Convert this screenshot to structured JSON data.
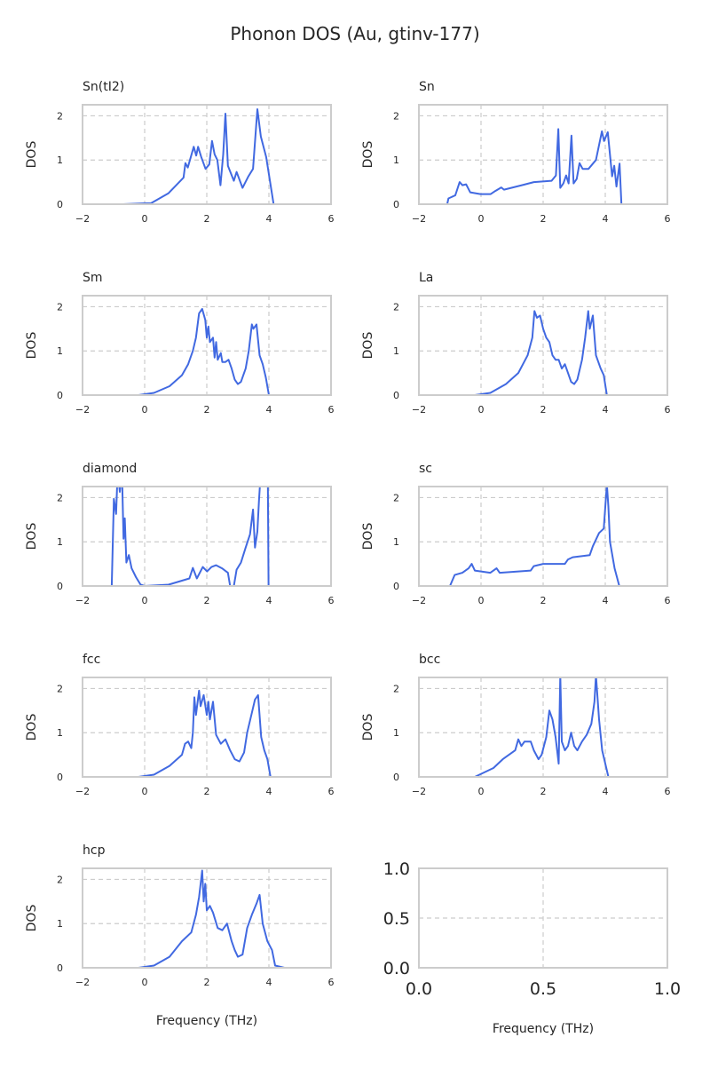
{
  "title": "Phonon DOS (Au, gtinv-177)",
  "line_color": "#4169e1",
  "chart_data": [
    {
      "type": "line",
      "title": "Sn(tI2)",
      "ylabel": "DOS",
      "xlabel": "",
      "xlim": [
        -2,
        6
      ],
      "ylim": [
        0,
        2.25
      ],
      "xticks": [
        "−2",
        "0",
        "2",
        "4",
        "6"
      ],
      "yticks": [
        "0",
        "1",
        "2"
      ],
      "grid": true,
      "x": [
        -0.7,
        0,
        0.2,
        0.77,
        1.25,
        1.31,
        1.39,
        1.58,
        1.66,
        1.72,
        1.82,
        1.96,
        2.08,
        2.17,
        2.25,
        2.34,
        2.44,
        2.53,
        2.6,
        2.68,
        2.87,
        2.96,
        3.15,
        3.34,
        3.49,
        3.63,
        3.74,
        3.91,
        4.15,
        4.63
      ],
      "y": [
        0,
        0.02,
        0.02,
        0.25,
        0.6,
        0.93,
        0.83,
        1.3,
        1.1,
        1.3,
        1.07,
        0.8,
        0.9,
        1.43,
        1.13,
        1.0,
        0.43,
        1.13,
        2.05,
        0.87,
        0.53,
        0.73,
        0.37,
        0.63,
        0.8,
        2.15,
        1.53,
        1.07,
        0,
        0
      ]
    },
    {
      "type": "line",
      "title": "Sn",
      "ylabel": "DOS",
      "xlabel": "",
      "xlim": [
        -2,
        6
      ],
      "ylim": [
        0,
        2.25
      ],
      "xticks": [
        "−2",
        "0",
        "2",
        "4",
        "6"
      ],
      "yticks": [
        "0",
        "1",
        "2"
      ],
      "grid": true,
      "x": [
        -1.64,
        -1.09,
        -1.05,
        -0.83,
        -0.69,
        -0.6,
        -0.48,
        -0.35,
        -0.02,
        0.31,
        0.46,
        0.65,
        0.74,
        1.31,
        1.7,
        2.27,
        2.41,
        2.49,
        2.55,
        2.65,
        2.74,
        2.82,
        2.91,
        2.98,
        3.08,
        3.17,
        3.27,
        3.46,
        3.7,
        3.89,
        3.96,
        4.08,
        4.22,
        4.29,
        4.36,
        4.46,
        4.52,
        5.07
      ],
      "y": [
        0,
        0,
        0.13,
        0.2,
        0.5,
        0.43,
        0.45,
        0.27,
        0.23,
        0.23,
        0.3,
        0.38,
        0.33,
        0.43,
        0.5,
        0.53,
        0.65,
        1.7,
        0.37,
        0.47,
        0.65,
        0.47,
        1.55,
        0.47,
        0.57,
        0.93,
        0.8,
        0.8,
        1.0,
        1.65,
        1.43,
        1.63,
        0.63,
        0.87,
        0.4,
        0.92,
        0,
        0
      ]
    },
    {
      "type": "line",
      "title": "Sm",
      "ylabel": "DOS",
      "xlabel": "",
      "xlim": [
        -2,
        6
      ],
      "ylim": [
        0,
        2.25
      ],
      "xticks": [
        "−2",
        "0",
        "2",
        "4",
        "6"
      ],
      "yticks": [
        "0",
        "1",
        "2"
      ],
      "grid": true,
      "x": [
        -0.2,
        0.3,
        0.8,
        1.2,
        1.4,
        1.55,
        1.65,
        1.75,
        1.85,
        1.95,
        2.0,
        2.05,
        2.1,
        2.2,
        2.25,
        2.3,
        2.35,
        2.45,
        2.5,
        2.6,
        2.7,
        2.8,
        2.9,
        3.0,
        3.1,
        3.25,
        3.35,
        3.45,
        3.5,
        3.6,
        3.7,
        3.8,
        3.9,
        4.0,
        4.5
      ],
      "y": [
        0,
        0.05,
        0.2,
        0.45,
        0.7,
        1.0,
        1.3,
        1.85,
        1.95,
        1.7,
        1.3,
        1.55,
        1.2,
        1.3,
        0.85,
        1.2,
        0.8,
        0.95,
        0.75,
        0.75,
        0.8,
        0.6,
        0.35,
        0.25,
        0.3,
        0.6,
        1.0,
        1.6,
        1.5,
        1.6,
        0.9,
        0.7,
        0.4,
        0,
        0
      ]
    },
    {
      "type": "line",
      "title": "La",
      "ylabel": "DOS",
      "xlabel": "",
      "xlim": [
        -2,
        6
      ],
      "ylim": [
        0,
        2.25
      ],
      "xticks": [
        "−2",
        "0",
        "2",
        "4",
        "6"
      ],
      "yticks": [
        "0",
        "1",
        "2"
      ],
      "grid": true,
      "x": [
        -0.2,
        0.3,
        0.8,
        1.2,
        1.5,
        1.65,
        1.72,
        1.8,
        1.9,
        2.0,
        2.1,
        2.2,
        2.3,
        2.4,
        2.5,
        2.6,
        2.7,
        2.8,
        2.9,
        3.0,
        3.1,
        3.25,
        3.35,
        3.45,
        3.5,
        3.6,
        3.7,
        3.85,
        3.95,
        4.05,
        4.5
      ],
      "y": [
        0,
        0.05,
        0.25,
        0.5,
        0.9,
        1.3,
        1.9,
        1.75,
        1.8,
        1.5,
        1.3,
        1.2,
        0.9,
        0.8,
        0.8,
        0.6,
        0.7,
        0.5,
        0.3,
        0.25,
        0.35,
        0.8,
        1.3,
        1.9,
        1.5,
        1.8,
        0.9,
        0.6,
        0.45,
        0,
        0
      ]
    },
    {
      "type": "line",
      "title": "diamond",
      "ylabel": "DOS",
      "xlabel": "",
      "xlim": [
        -2,
        6
      ],
      "ylim": [
        0,
        2.25
      ],
      "xticks": [
        "−2",
        "0",
        "2",
        "4",
        "6"
      ],
      "yticks": [
        "0",
        "1",
        "2"
      ],
      "grid": true,
      "x": [
        -1.56,
        -1.06,
        -0.99,
        -0.92,
        -0.87,
        -0.8,
        -0.73,
        -0.68,
        -0.64,
        -0.59,
        -0.51,
        -0.42,
        -0.28,
        -0.13,
        0,
        0.77,
        1.44,
        1.55,
        1.68,
        1.87,
        2.01,
        2.15,
        2.3,
        2.49,
        2.68,
        2.75,
        2.87,
        2.96,
        3.1,
        3.25,
        3.39,
        3.49,
        3.55,
        3.63,
        3.68,
        3.74,
        3.96,
        3.99,
        4.49
      ],
      "y": [
        0,
        0,
        1.97,
        1.63,
        2.6,
        2.13,
        2.6,
        1.07,
        1.53,
        0.53,
        0.7,
        0.4,
        0.2,
        0.03,
        0,
        0.03,
        0.17,
        0.41,
        0.17,
        0.43,
        0.33,
        0.43,
        0.47,
        0.4,
        0.3,
        0,
        0,
        0.37,
        0.53,
        0.87,
        1.17,
        1.73,
        0.87,
        1.23,
        1.93,
        2.6,
        3.0,
        0,
        0
      ]
    },
    {
      "type": "line",
      "title": "sc",
      "ylabel": "DOS",
      "xlabel": "",
      "xlim": [
        -2,
        6
      ],
      "ylim": [
        0,
        2.25
      ],
      "xticks": [
        "−2",
        "0",
        "2",
        "4",
        "6"
      ],
      "yticks": [
        "0",
        "1",
        "2"
      ],
      "grid": true,
      "x": [
        -1.6,
        -1.0,
        -0.85,
        -0.6,
        -0.4,
        -0.3,
        -0.2,
        0.3,
        0.5,
        0.6,
        1.6,
        1.7,
        2.0,
        2.7,
        2.8,
        2.95,
        3.5,
        3.6,
        3.8,
        3.95,
        4.05,
        4.1,
        4.15,
        4.3,
        4.45,
        5.0
      ],
      "y": [
        0,
        0,
        0.25,
        0.3,
        0.4,
        0.5,
        0.35,
        0.3,
        0.4,
        0.3,
        0.35,
        0.45,
        0.5,
        0.5,
        0.6,
        0.65,
        0.7,
        0.9,
        1.2,
        1.3,
        2.3,
        1.8,
        1.0,
        0.4,
        0,
        0
      ]
    },
    {
      "type": "line",
      "title": "fcc",
      "ylabel": "DOS",
      "xlabel": "",
      "xlim": [
        -2,
        6
      ],
      "ylim": [
        0,
        2.25
      ],
      "xticks": [
        "−2",
        "0",
        "2",
        "4",
        "6"
      ],
      "yticks": [
        "0",
        "1",
        "2"
      ],
      "grid": true,
      "x": [
        -0.2,
        0.3,
        0.8,
        1.2,
        1.3,
        1.4,
        1.5,
        1.55,
        1.6,
        1.65,
        1.75,
        1.8,
        1.9,
        2.0,
        2.05,
        2.1,
        2.2,
        2.3,
        2.45,
        2.6,
        2.75,
        2.9,
        3.05,
        3.2,
        3.3,
        3.45,
        3.55,
        3.65,
        3.75,
        3.85,
        3.95,
        4.05,
        4.5
      ],
      "y": [
        0,
        0.05,
        0.25,
        0.5,
        0.75,
        0.8,
        0.65,
        1.0,
        1.8,
        1.4,
        1.95,
        1.6,
        1.85,
        1.4,
        1.7,
        1.3,
        1.7,
        0.95,
        0.75,
        0.85,
        0.6,
        0.4,
        0.35,
        0.55,
        1.0,
        1.45,
        1.75,
        1.85,
        0.9,
        0.6,
        0.4,
        0,
        0
      ]
    },
    {
      "type": "line",
      "title": "bcc",
      "ylabel": "DOS",
      "xlabel": "",
      "xlim": [
        -2,
        6
      ],
      "ylim": [
        0,
        2.25
      ],
      "xticks": [
        "−2",
        "0",
        "2",
        "4",
        "6"
      ],
      "yticks": [
        "0",
        "1",
        "2"
      ],
      "grid": true,
      "x": [
        -0.8,
        -0.2,
        0.1,
        0.4,
        0.7,
        0.9,
        1.1,
        1.2,
        1.3,
        1.4,
        1.6,
        1.7,
        1.85,
        1.95,
        2.1,
        2.2,
        2.3,
        2.4,
        2.5,
        2.55,
        2.6,
        2.7,
        2.8,
        2.9,
        3.0,
        3.1,
        3.25,
        3.4,
        3.55,
        3.65,
        3.7,
        3.8,
        3.9,
        4.1,
        4.6
      ],
      "y": [
        0,
        0,
        0.1,
        0.2,
        0.4,
        0.5,
        0.6,
        0.85,
        0.7,
        0.8,
        0.8,
        0.6,
        0.4,
        0.5,
        0.9,
        1.5,
        1.3,
        0.9,
        0.3,
        2.3,
        0.8,
        0.6,
        0.7,
        1.0,
        0.7,
        0.6,
        0.8,
        0.95,
        1.2,
        1.7,
        2.3,
        1.3,
        0.6,
        0,
        0
      ]
    },
    {
      "type": "line",
      "title": "hcp",
      "ylabel": "DOS",
      "xlabel": "Frequency (THz)",
      "xlim": [
        -2,
        6
      ],
      "ylim": [
        0,
        2.25
      ],
      "xticks": [
        "−2",
        "0",
        "2",
        "4",
        "6"
      ],
      "yticks": [
        "0",
        "1",
        "2"
      ],
      "grid": true,
      "x": [
        -0.2,
        0.3,
        0.8,
        1.2,
        1.5,
        1.65,
        1.75,
        1.85,
        1.9,
        1.95,
        2.0,
        2.1,
        2.2,
        2.35,
        2.5,
        2.65,
        2.8,
        2.9,
        3.0,
        3.15,
        3.3,
        3.45,
        3.6,
        3.7,
        3.8,
        3.95,
        4.1,
        4.2,
        4.5
      ],
      "y": [
        0,
        0.05,
        0.25,
        0.6,
        0.8,
        1.2,
        1.6,
        2.2,
        1.5,
        1.9,
        1.3,
        1.4,
        1.25,
        0.9,
        0.85,
        1.0,
        0.6,
        0.4,
        0.25,
        0.3,
        0.9,
        1.2,
        1.45,
        1.65,
        1.0,
        0.6,
        0.4,
        0.05,
        0
      ]
    },
    {
      "type": "line",
      "title": "",
      "ylabel": "",
      "xlabel": "Frequency (THz)",
      "xlim": [
        0,
        1
      ],
      "ylim": [
        0,
        1
      ],
      "xticks": [
        "0.0",
        "0.5",
        "1.0"
      ],
      "yticks": [
        "0.0",
        "0.5",
        "1.0"
      ],
      "grid": true,
      "x": [],
      "y": []
    }
  ]
}
